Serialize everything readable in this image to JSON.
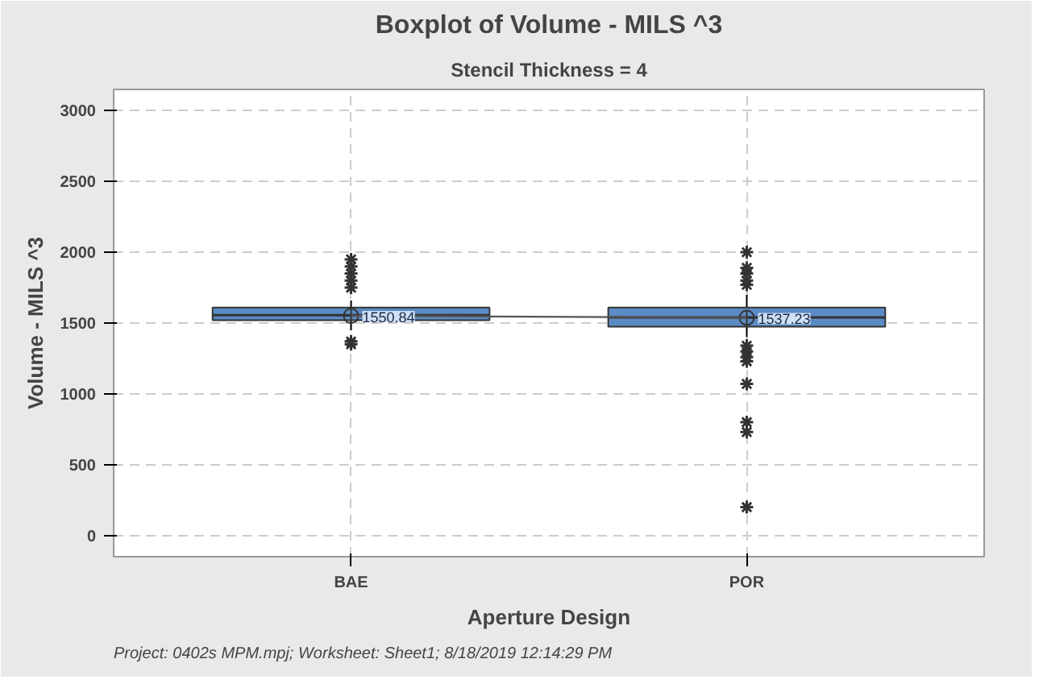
{
  "chart_data": {
    "type": "box",
    "title": "Boxplot of Volume - MILS ^3",
    "subtitle": "Stencil Thickness = 4",
    "xlabel": "Aperture Design",
    "ylabel": "Volume - MILS ^3",
    "categories": [
      "BAE",
      "POR"
    ],
    "color": "#5b8bc4",
    "boxes": [
      {
        "low": 1450,
        "q1": 1520,
        "median": 1555,
        "q3": 1610,
        "high": 1660,
        "mean": 1550.84,
        "outliers": [
          1350,
          1370,
          1750,
          1800,
          1850,
          1900,
          1950
        ]
      },
      {
        "low": 1400,
        "q1": 1475,
        "median": 1540,
        "q3": 1610,
        "high": 1700,
        "mean": 1537.23,
        "outliers": [
          200,
          730,
          800,
          1070,
          1230,
          1260,
          1300,
          1340,
          1770,
          1800,
          1850,
          1890,
          2000
        ]
      }
    ],
    "series": [
      {
        "type": "line",
        "color": "#555555",
        "values": [
          1550.84,
          1537.23
        ]
      }
    ],
    "annotations": [
      {
        "text": "1550.84",
        "x": "BAE",
        "y": 1550.84
      },
      {
        "text": "1537.23",
        "x": "POR",
        "y": 1537.23
      },
      "Project: 0402s MPM.mpj; Worksheet: Sheet1; 8/18/2019 12:14:29 PM"
    ],
    "ylim": [
      -150,
      3150
    ],
    "yticks": [
      0,
      500,
      1000,
      1500,
      2000,
      2500,
      3000
    ],
    "grid": true
  }
}
